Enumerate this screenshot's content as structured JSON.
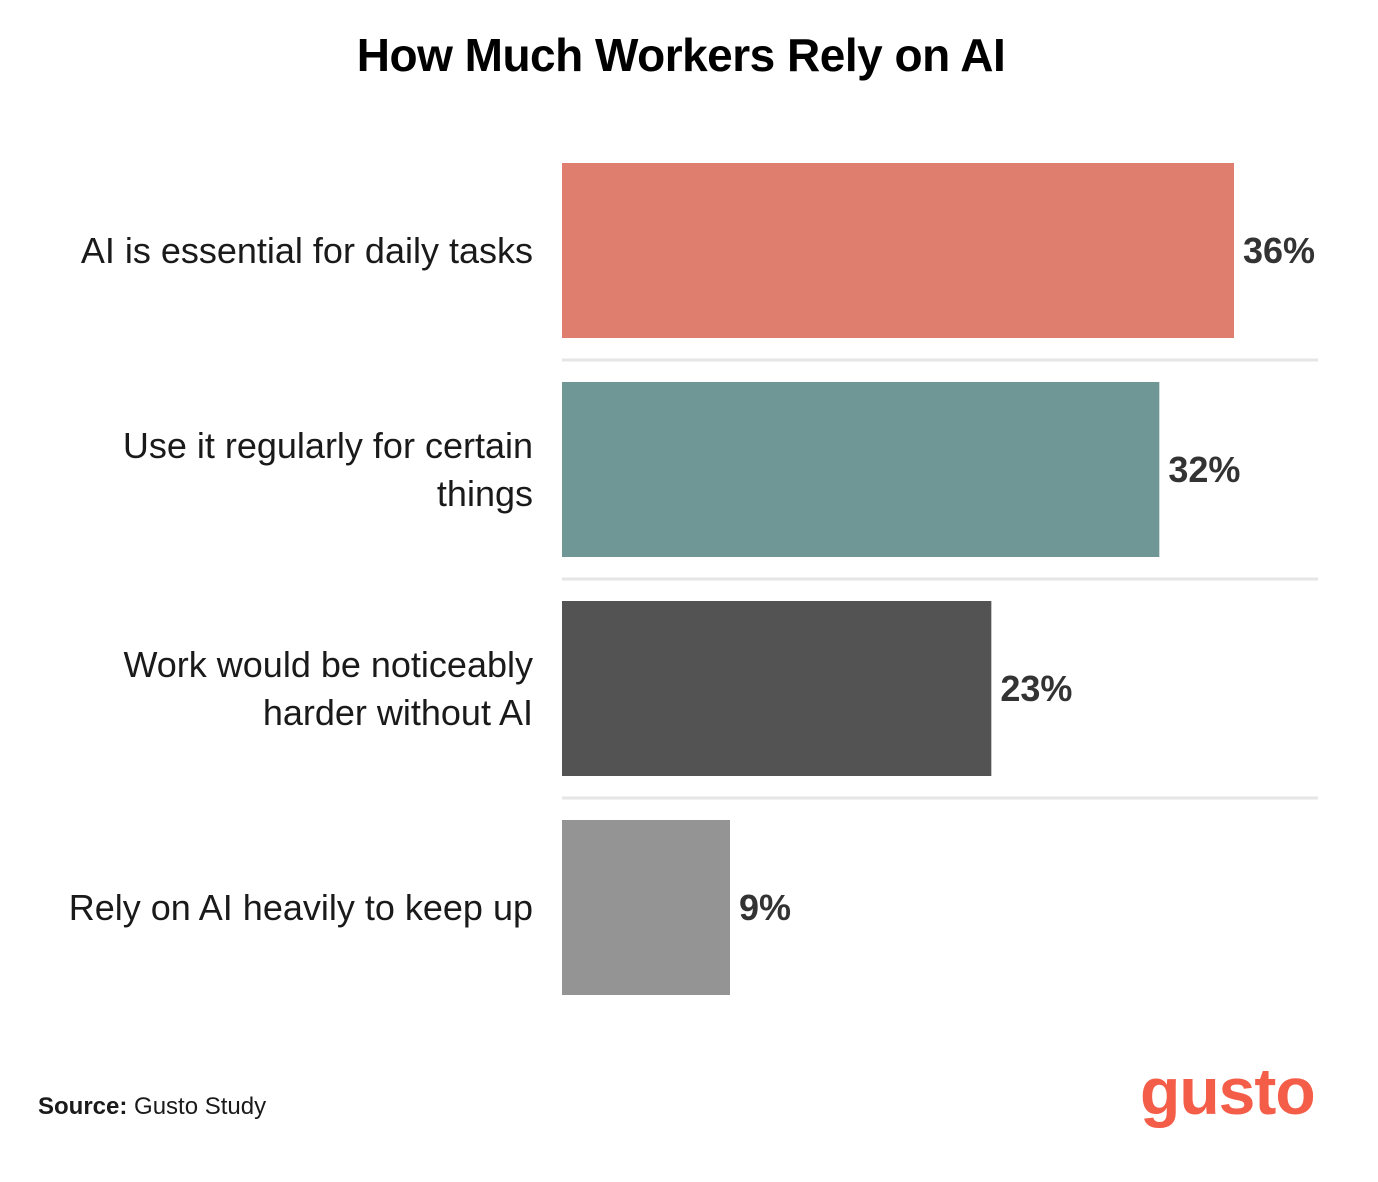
{
  "chart_data": {
    "type": "bar",
    "orientation": "horizontal",
    "title": "How Much Workers Rely on AI",
    "categories": [
      [
        "AI is essential for daily tasks"
      ],
      [
        "Use it regularly for certain",
        "things"
      ],
      [
        "Work would be noticeably",
        "harder without AI"
      ],
      [
        "Rely on AI heavily to keep up"
      ]
    ],
    "values": [
      36,
      32,
      23,
      9
    ],
    "value_labels": [
      "36%",
      "32%",
      "23%",
      "9%"
    ],
    "colors": [
      "#df7e6f",
      "#6f9795",
      "#535353",
      "#949494"
    ],
    "xlim": [
      0,
      40.5
    ],
    "xlabel": "",
    "ylabel": "",
    "grid": false
  },
  "source": {
    "label": "Source:",
    "text": "Gusto Study"
  },
  "logo": {
    "text": "gusto",
    "color": "#f45d48"
  }
}
